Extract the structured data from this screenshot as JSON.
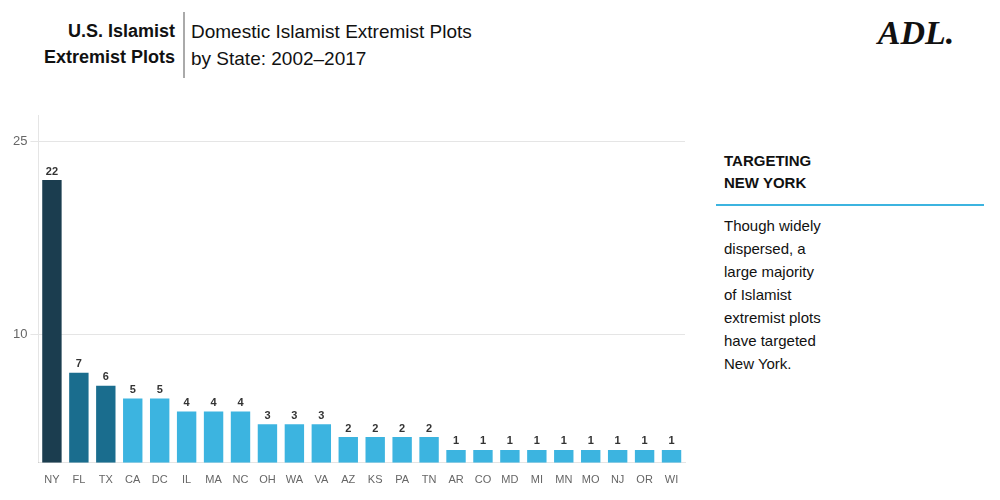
{
  "chart_data": {
    "type": "bar",
    "title": [
      "U.S. Islamist",
      "Extremist Plots"
    ],
    "subtitle": [
      "Domestic Islamist Extremist Plots",
      "by State: 2002–2017"
    ],
    "annotations": [
      "ADL.",
      "TARGETING",
      "NEW YORK",
      "Though widely\ndispersed, a\nlarge majority\nof Islamist\nextremist plots\nhave targeted\nNew York."
    ],
    "categories": [
      "NY",
      "FL",
      "TX",
      "CA",
      "DC",
      "IL",
      "MA",
      "NC",
      "OH",
      "WA",
      "VA",
      "AZ",
      "KS",
      "PA",
      "TN",
      "AR",
      "CO",
      "MD",
      "MI",
      "MN",
      "MO",
      "NJ",
      "OR",
      "WI"
    ],
    "values": [
      22,
      7,
      6,
      5,
      5,
      4,
      4,
      4,
      3,
      3,
      3,
      2,
      2,
      2,
      2,
      1,
      1,
      1,
      1,
      1,
      1,
      1,
      1,
      1
    ],
    "colors": [
      "#1b3d4f",
      "#1a6d8e",
      "#1a6d8e",
      "#3cb4e0",
      "#3cb4e0",
      "#3cb4e0",
      "#3cb4e0",
      "#3cb4e0",
      "#3cb4e0",
      "#3cb4e0",
      "#3cb4e0",
      "#3cb4e0",
      "#3cb4e0",
      "#3cb4e0",
      "#3cb4e0",
      "#3cb4e0",
      "#3cb4e0",
      "#3cb4e0",
      "#3cb4e0",
      "#3cb4e0",
      "#3cb4e0",
      "#3cb4e0",
      "#3cb4e0",
      "#3cb4e0"
    ],
    "ylim": [
      0,
      27
    ],
    "yticks": [
      10,
      25
    ],
    "grid": true,
    "data_labels": true
  }
}
